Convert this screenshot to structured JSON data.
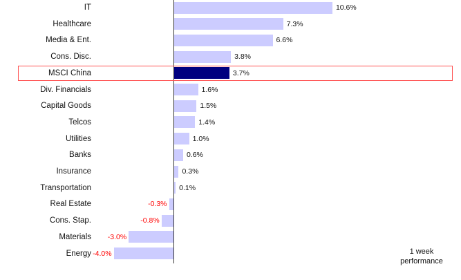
{
  "chart_data": {
    "type": "bar",
    "orientation": "horizontal",
    "title": "",
    "xlabel": "1 week performance",
    "ylabel": "",
    "unit": "%",
    "highlight": "MSCI China",
    "categories": [
      "IT",
      "Healthcare",
      "Media & Ent.",
      "Cons. Disc.",
      "MSCI China",
      "Div. Financials",
      "Capital Goods",
      "Telcos",
      "Utilities",
      "Banks",
      "Insurance",
      "Transportation",
      "Real Estate",
      "Cons. Stap.",
      "Materials",
      "Energy"
    ],
    "values": [
      10.6,
      7.3,
      6.6,
      3.8,
      3.7,
      1.6,
      1.5,
      1.4,
      1.0,
      0.6,
      0.3,
      0.1,
      -0.3,
      -0.8,
      -3.0,
      -4.0
    ],
    "labels": [
      "10.6%",
      "7.3%",
      "6.6%",
      "3.8%",
      "3.7%",
      "1.6%",
      "1.5%",
      "1.4%",
      "1.0%",
      "0.6%",
      "0.3%",
      "0.1%",
      "-0.3%",
      "-0.8%",
      "-3.0%",
      "-4.0%"
    ],
    "grid": false,
    "legend_position": "bottom-right"
  },
  "legend": {
    "line1": "1 week",
    "line2": "performance"
  },
  "colors": {
    "bar": "#ccccff",
    "highlight_bar": "#000080",
    "negative_label": "#ff0000",
    "highlight_box": "#ff5050"
  }
}
